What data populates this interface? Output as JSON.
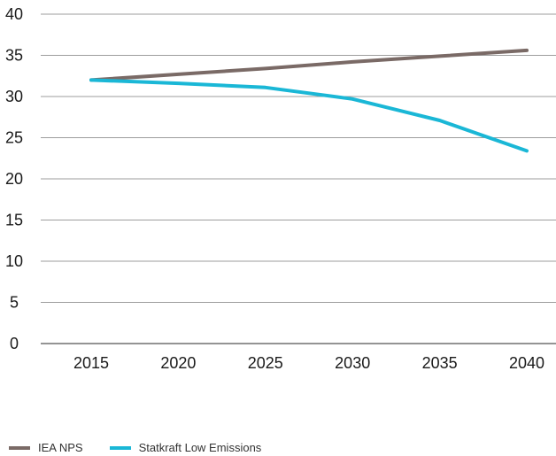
{
  "chart_data": {
    "type": "line",
    "x": [
      2015,
      2020,
      2025,
      2030,
      2035,
      2040
    ],
    "xlabels": [
      "2015",
      "2020",
      "2025",
      "2030",
      "2035",
      "2040"
    ],
    "ylim": [
      0,
      40
    ],
    "yticks": [
      0,
      5,
      10,
      15,
      20,
      25,
      30,
      35,
      40
    ],
    "grid": "horizontal",
    "legend_position": "bottom-left",
    "series": [
      {
        "name": "IEA NPS",
        "color": "#7a6a66",
        "values": [
          32.0,
          32.7,
          33.4,
          34.2,
          34.9,
          35.6
        ]
      },
      {
        "name": "Statkraft Low Emissions",
        "color": "#1ab7d6",
        "values": [
          32.0,
          31.6,
          31.1,
          29.7,
          27.1,
          23.4
        ]
      }
    ]
  }
}
